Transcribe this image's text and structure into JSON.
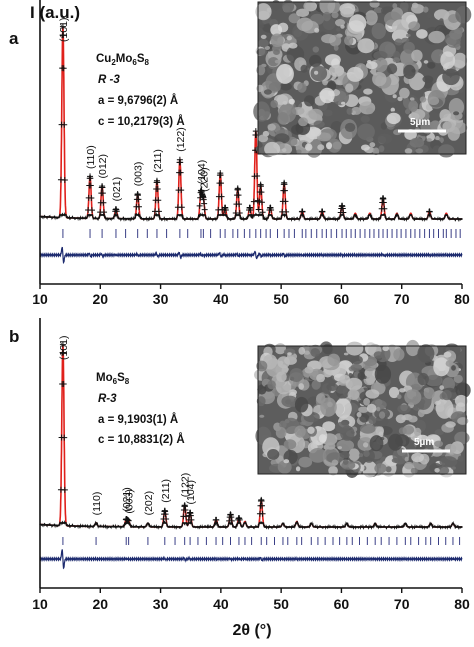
{
  "figure": {
    "ylabel": "I (a.u.)",
    "xlabel": "2θ (°)",
    "x_ticks": [
      "10",
      "20",
      "30",
      "40",
      "50",
      "60",
      "70",
      "80"
    ],
    "scale_bar_label": "5µm"
  },
  "chart_data": [
    {
      "type": "line",
      "panel": "a",
      "title": "",
      "xlabel": "2θ (°)",
      "ylabel": "I (a.u.)",
      "xlim": [
        10,
        80
      ],
      "compound": "Cu2Mo6S8",
      "space_group": "R -3",
      "lattice_a": "a = 9,6796(2) Å",
      "lattice_c": "c = 10,2179(3) Å",
      "series": [
        {
          "name": "",
          "kind": "observed",
          "color": "#111111"
        },
        {
          "name": "",
          "kind": "calculated",
          "color": "#e0201b"
        },
        {
          "name": "",
          "kind": "difference",
          "color": "#1c2a6e"
        }
      ],
      "peaks": [
        {
          "x": 13.8,
          "h": 1.0,
          "label": "(101)"
        },
        {
          "x": 18.3,
          "h": 0.22,
          "label": "(110)"
        },
        {
          "x": 20.3,
          "h": 0.17,
          "label": "(012)"
        },
        {
          "x": 22.6,
          "h": 0.05,
          "label": "(021)"
        },
        {
          "x": 26.2,
          "h": 0.13,
          "label": "(003)"
        },
        {
          "x": 29.4,
          "h": 0.2,
          "label": "(211)"
        },
        {
          "x": 33.2,
          "h": 0.31,
          "label": "(122)"
        },
        {
          "x": 36.7,
          "h": 0.14,
          "label": "(104)"
        },
        {
          "x": 37.1,
          "h": 0.1,
          "label": "(220)"
        },
        {
          "x": 39.9,
          "h": 0.24,
          "label": ""
        },
        {
          "x": 40.7,
          "h": 0.06,
          "label": ""
        },
        {
          "x": 42.8,
          "h": 0.16,
          "label": ""
        },
        {
          "x": 44.8,
          "h": 0.06,
          "label": ""
        },
        {
          "x": 45.8,
          "h": 0.46,
          "label": ""
        },
        {
          "x": 46.6,
          "h": 0.18,
          "label": ""
        },
        {
          "x": 48.2,
          "h": 0.06,
          "label": ""
        },
        {
          "x": 50.5,
          "h": 0.19,
          "label": ""
        },
        {
          "x": 53.5,
          "h": 0.04,
          "label": ""
        },
        {
          "x": 56.8,
          "h": 0.04,
          "label": ""
        },
        {
          "x": 60.1,
          "h": 0.07,
          "label": ""
        },
        {
          "x": 62.3,
          "h": 0.03,
          "label": ""
        },
        {
          "x": 64.7,
          "h": 0.03,
          "label": ""
        },
        {
          "x": 66.9,
          "h": 0.11,
          "label": ""
        },
        {
          "x": 69.2,
          "h": 0.03,
          "label": ""
        },
        {
          "x": 71.5,
          "h": 0.03,
          "label": ""
        },
        {
          "x": 74.6,
          "h": 0.04,
          "label": ""
        },
        {
          "x": 77.4,
          "h": 0.03,
          "label": ""
        }
      ],
      "tick_marks": [
        13.8,
        18.3,
        20.3,
        22.6,
        24.2,
        26.2,
        27.8,
        29.4,
        31.0,
        33.2,
        34.5,
        36.7,
        37.1,
        38.3,
        39.9,
        40.7,
        42.0,
        42.8,
        43.9,
        44.8,
        45.8,
        46.6,
        47.5,
        48.2,
        49.4,
        50.5,
        51.3,
        52.2,
        53.5,
        54.1,
        55.0,
        55.9,
        56.8,
        57.5,
        58.3,
        59.2,
        60.1,
        60.8,
        61.6,
        62.3,
        63.1,
        63.9,
        64.7,
        65.4,
        66.2,
        66.9,
        67.6,
        68.4,
        69.2,
        69.9,
        70.7,
        71.5,
        72.2,
        73.0,
        73.8,
        74.6,
        75.3,
        76.1,
        76.9,
        77.4,
        78.2,
        79.0,
        79.7
      ]
    },
    {
      "type": "line",
      "panel": "b",
      "title": "",
      "xlabel": "2θ (°)",
      "ylabel": "",
      "xlim": [
        10,
        80
      ],
      "compound": "Mo6S8",
      "space_group": "R-3",
      "lattice_a": "a = 9,1903(1) Å",
      "lattice_c": "c = 10,8831(2) Å",
      "series": [
        {
          "name": "",
          "kind": "observed",
          "color": "#111111"
        },
        {
          "name": "",
          "kind": "calculated",
          "color": "#e0201b"
        },
        {
          "name": "",
          "kind": "difference",
          "color": "#1c2a6e"
        }
      ],
      "peaks": [
        {
          "x": 13.8,
          "h": 1.0,
          "label": "(101)"
        },
        {
          "x": 19.3,
          "h": 0.02,
          "label": "(110)"
        },
        {
          "x": 24.3,
          "h": 0.04,
          "label": "(021)"
        },
        {
          "x": 24.7,
          "h": 0.03,
          "label": "(003)"
        },
        {
          "x": 27.9,
          "h": 0.02,
          "label": "(202)"
        },
        {
          "x": 30.7,
          "h": 0.09,
          "label": "(211)"
        },
        {
          "x": 34.0,
          "h": 0.12,
          "label": "(122)"
        },
        {
          "x": 34.9,
          "h": 0.08,
          "label": "(104)"
        },
        {
          "x": 39.2,
          "h": 0.04,
          "label": ""
        },
        {
          "x": 41.6,
          "h": 0.07,
          "label": ""
        },
        {
          "x": 43.0,
          "h": 0.05,
          "label": ""
        },
        {
          "x": 44.0,
          "h": 0.03,
          "label": ""
        },
        {
          "x": 46.7,
          "h": 0.15,
          "label": ""
        },
        {
          "x": 50.3,
          "h": 0.02,
          "label": ""
        },
        {
          "x": 52.6,
          "h": 0.03,
          "label": ""
        },
        {
          "x": 55.0,
          "h": 0.02,
          "label": ""
        },
        {
          "x": 60.9,
          "h": 0.02,
          "label": ""
        },
        {
          "x": 65.6,
          "h": 0.02,
          "label": ""
        },
        {
          "x": 70.6,
          "h": 0.02,
          "label": ""
        },
        {
          "x": 74.8,
          "h": 0.02,
          "label": ""
        },
        {
          "x": 78.5,
          "h": 0.02,
          "label": ""
        }
      ],
      "tick_marks": [
        13.8,
        19.3,
        24.3,
        24.7,
        27.9,
        30.7,
        32.4,
        34.0,
        34.9,
        36.2,
        37.6,
        39.2,
        40.3,
        41.6,
        43.0,
        44.0,
        45.1,
        46.7,
        47.6,
        48.9,
        50.3,
        51.1,
        52.6,
        53.4,
        55.0,
        56.1,
        57.3,
        58.6,
        59.7,
        60.9,
        61.8,
        63.0,
        64.3,
        65.6,
        66.6,
        67.9,
        69.2,
        70.6,
        71.5,
        72.8,
        74.0,
        74.8,
        76.1,
        77.3,
        78.5,
        79.6
      ]
    }
  ]
}
